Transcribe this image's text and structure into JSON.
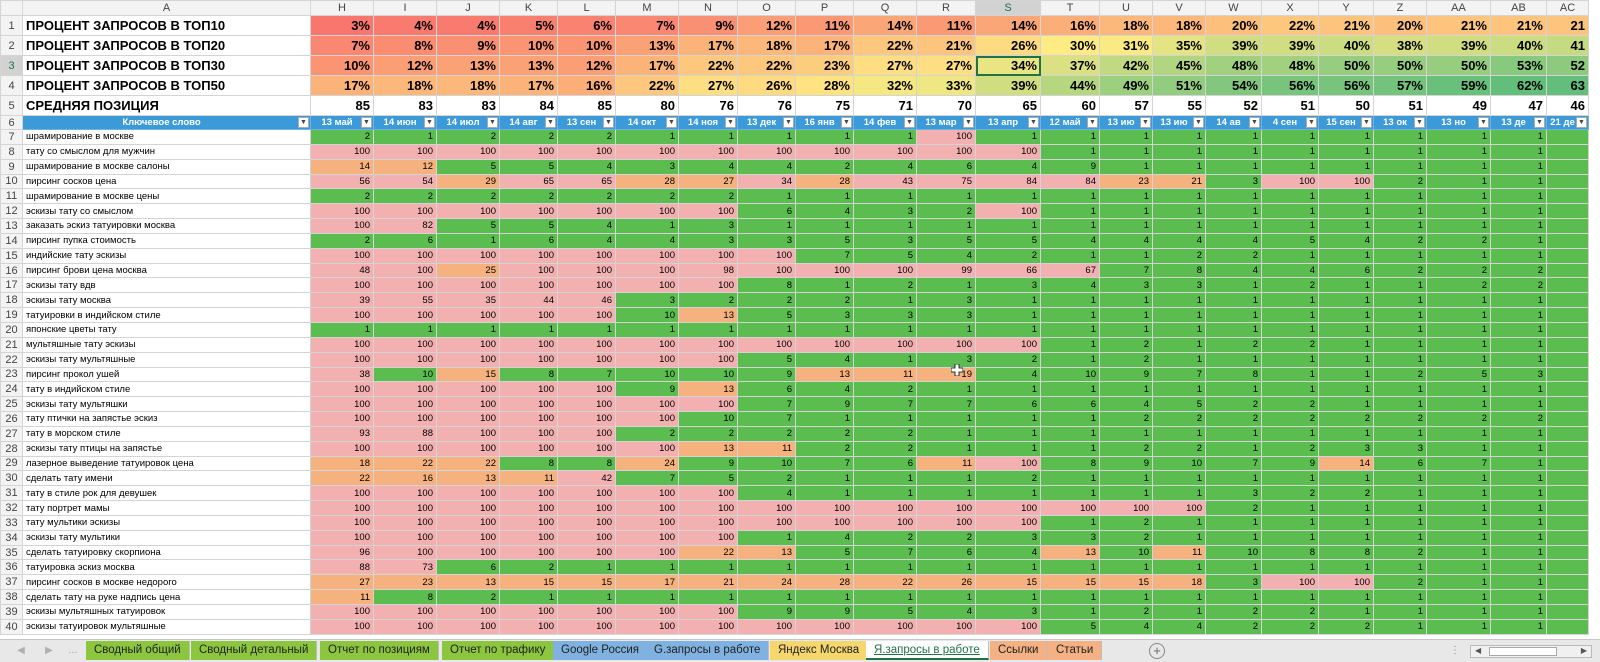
{
  "columns": [
    "A",
    "H",
    "I",
    "J",
    "K",
    "L",
    "M",
    "N",
    "O",
    "P",
    "Q",
    "R",
    "S",
    "T",
    "U",
    "V",
    "W",
    "X",
    "Y",
    "Z",
    "AA",
    "AB",
    "AC"
  ],
  "selected_column": "S",
  "selected_row": "3",
  "summary_rows": [
    {
      "row": "1",
      "label": "ПРОЦЕНТ ЗАПРОСОВ В ТОП10",
      "values": [
        "3%",
        "4%",
        "4%",
        "5%",
        "6%",
        "7%",
        "9%",
        "12%",
        "11%",
        "14%",
        "11%",
        "14%",
        "16%",
        "18%",
        "18%",
        "20%",
        "22%",
        "21%",
        "20%",
        "21%",
        "21%",
        "21"
      ]
    },
    {
      "row": "2",
      "label": "ПРОЦЕНТ ЗАПРОСОВ В ТОП20",
      "values": [
        "7%",
        "8%",
        "9%",
        "10%",
        "10%",
        "13%",
        "17%",
        "18%",
        "17%",
        "22%",
        "21%",
        "26%",
        "30%",
        "31%",
        "35%",
        "39%",
        "39%",
        "40%",
        "38%",
        "39%",
        "40%",
        "41"
      ]
    },
    {
      "row": "3",
      "label": "ПРОЦЕНТ ЗАПРОСОВ В ТОП30",
      "values": [
        "10%",
        "12%",
        "13%",
        "13%",
        "12%",
        "17%",
        "22%",
        "22%",
        "23%",
        "27%",
        "27%",
        "34%",
        "37%",
        "42%",
        "45%",
        "48%",
        "48%",
        "50%",
        "50%",
        "50%",
        "53%",
        "52"
      ]
    },
    {
      "row": "4",
      "label": "ПРОЦЕНТ ЗАПРОСОВ В ТОП50",
      "values": [
        "17%",
        "18%",
        "18%",
        "17%",
        "16%",
        "22%",
        "27%",
        "26%",
        "28%",
        "32%",
        "33%",
        "39%",
        "44%",
        "49%",
        "51%",
        "54%",
        "56%",
        "56%",
        "57%",
        "59%",
        "62%",
        "63"
      ]
    },
    {
      "row": "5",
      "label": "СРЕДНЯЯ ПОЗИЦИЯ",
      "values": [
        "85",
        "83",
        "83",
        "84",
        "85",
        "80",
        "76",
        "76",
        "75",
        "71",
        "70",
        "65",
        "60",
        "57",
        "55",
        "52",
        "51",
        "50",
        "51",
        "49",
        "47",
        "46"
      ]
    }
  ],
  "header_row": {
    "row": "6",
    "keyword_label": "Ключевое слово",
    "dates": [
      "13 май",
      "14 июн",
      "14 июл",
      "14 авг",
      "13 сен",
      "14 окт",
      "14 ноя",
      "13 дек",
      "16 янв",
      "14 фев",
      "13 мар",
      "13 апр",
      "12 май",
      "13 ию",
      "13 ию",
      "14 ав",
      "4 сен",
      "15 сен",
      "13 ок",
      "13 но",
      "13 де",
      "21 де"
    ]
  },
  "data_rows": [
    {
      "row": "7",
      "keyword": "шрамирование в москве",
      "values": [
        "2",
        "1",
        "2",
        "2",
        "2",
        "1",
        "1",
        "1",
        "1",
        "1",
        "100",
        "1",
        "1",
        "1",
        "1",
        "1",
        "1",
        "1",
        "1",
        "1",
        "1",
        ""
      ]
    },
    {
      "row": "8",
      "keyword": "тату со смыслом для мужчин",
      "values": [
        "100",
        "100",
        "100",
        "100",
        "100",
        "100",
        "100",
        "100",
        "100",
        "100",
        "100",
        "100",
        "1",
        "1",
        "1",
        "1",
        "1",
        "1",
        "1",
        "1",
        "1",
        ""
      ]
    },
    {
      "row": "9",
      "keyword": "шрамирование в москве салоны",
      "values": [
        "14",
        "12",
        "5",
        "5",
        "4",
        "3",
        "4",
        "4",
        "2",
        "4",
        "6",
        "4",
        "9",
        "1",
        "1",
        "1",
        "1",
        "1",
        "1",
        "1",
        "1",
        ""
      ]
    },
    {
      "row": "10",
      "keyword": "пирсинг сосков цена",
      "values": [
        "56",
        "54",
        "29",
        "65",
        "65",
        "28",
        "27",
        "34",
        "28",
        "43",
        "75",
        "84",
        "84",
        "23",
        "21",
        "3",
        "100",
        "100",
        "2",
        "1",
        "1",
        ""
      ]
    },
    {
      "row": "11",
      "keyword": "шрамирование в москве цены",
      "values": [
        "2",
        "2",
        "2",
        "2",
        "2",
        "2",
        "2",
        "1",
        "1",
        "1",
        "1",
        "1",
        "1",
        "1",
        "1",
        "1",
        "1",
        "1",
        "1",
        "1",
        "1",
        ""
      ]
    },
    {
      "row": "12",
      "keyword": "эскизы тату со смыслом",
      "values": [
        "100",
        "100",
        "100",
        "100",
        "100",
        "100",
        "100",
        "6",
        "4",
        "3",
        "2",
        "100",
        "1",
        "1",
        "1",
        "1",
        "1",
        "1",
        "1",
        "1",
        "1",
        ""
      ]
    },
    {
      "row": "13",
      "keyword": "заказать эскиз татуировки москва",
      "values": [
        "100",
        "82",
        "5",
        "5",
        "4",
        "1",
        "3",
        "1",
        "1",
        "1",
        "1",
        "1",
        "1",
        "1",
        "1",
        "1",
        "1",
        "1",
        "1",
        "1",
        "1",
        ""
      ]
    },
    {
      "row": "14",
      "keyword": "пирсинг пупка стоимость",
      "values": [
        "2",
        "6",
        "1",
        "6",
        "4",
        "4",
        "3",
        "3",
        "5",
        "3",
        "5",
        "5",
        "4",
        "4",
        "4",
        "4",
        "5",
        "4",
        "2",
        "2",
        "1",
        ""
      ]
    },
    {
      "row": "15",
      "keyword": "индийские тату эскизы",
      "values": [
        "100",
        "100",
        "100",
        "100",
        "100",
        "100",
        "100",
        "100",
        "7",
        "5",
        "4",
        "2",
        "1",
        "1",
        "2",
        "2",
        "1",
        "1",
        "1",
        "1",
        "1",
        ""
      ]
    },
    {
      "row": "16",
      "keyword": "пирсинг брови цена москва",
      "values": [
        "48",
        "100",
        "25",
        "100",
        "100",
        "100",
        "98",
        "100",
        "100",
        "100",
        "99",
        "66",
        "67",
        "7",
        "8",
        "4",
        "4",
        "6",
        "2",
        "2",
        "2",
        ""
      ]
    },
    {
      "row": "17",
      "keyword": "эскизы тату вдв",
      "values": [
        "100",
        "100",
        "100",
        "100",
        "100",
        "100",
        "100",
        "8",
        "1",
        "2",
        "1",
        "3",
        "4",
        "3",
        "3",
        "1",
        "2",
        "1",
        "1",
        "2",
        "2",
        ""
      ]
    },
    {
      "row": "18",
      "keyword": "эскизы тату москва",
      "values": [
        "39",
        "55",
        "35",
        "44",
        "46",
        "3",
        "2",
        "2",
        "2",
        "1",
        "3",
        "1",
        "1",
        "1",
        "1",
        "1",
        "1",
        "1",
        "1",
        "1",
        "1",
        ""
      ]
    },
    {
      "row": "19",
      "keyword": "татуировки в индийском стиле",
      "values": [
        "100",
        "100",
        "100",
        "100",
        "100",
        "10",
        "13",
        "5",
        "3",
        "3",
        "3",
        "1",
        "1",
        "1",
        "1",
        "1",
        "1",
        "1",
        "1",
        "1",
        "1",
        ""
      ]
    },
    {
      "row": "20",
      "keyword": "японские цветы тату",
      "values": [
        "1",
        "1",
        "1",
        "1",
        "1",
        "1",
        "1",
        "1",
        "1",
        "1",
        "1",
        "1",
        "1",
        "1",
        "1",
        "1",
        "1",
        "1",
        "1",
        "1",
        "1",
        ""
      ]
    },
    {
      "row": "21",
      "keyword": "мультяшные тату эскизы",
      "values": [
        "100",
        "100",
        "100",
        "100",
        "100",
        "100",
        "100",
        "100",
        "100",
        "100",
        "100",
        "100",
        "1",
        "2",
        "1",
        "2",
        "2",
        "1",
        "1",
        "1",
        "1",
        ""
      ]
    },
    {
      "row": "22",
      "keyword": "эскизы тату мультяшные",
      "values": [
        "100",
        "100",
        "100",
        "100",
        "100",
        "100",
        "100",
        "5",
        "4",
        "1",
        "3",
        "2",
        "1",
        "2",
        "1",
        "1",
        "1",
        "1",
        "1",
        "1",
        "1",
        ""
      ]
    },
    {
      "row": "23",
      "keyword": "пирсинг прокол ушей",
      "values": [
        "38",
        "10",
        "15",
        "8",
        "7",
        "10",
        "10",
        "9",
        "13",
        "11",
        "19",
        "4",
        "10",
        "9",
        "7",
        "8",
        "1",
        "1",
        "2",
        "5",
        "3",
        ""
      ]
    },
    {
      "row": "24",
      "keyword": "тату в индийском стиле",
      "values": [
        "100",
        "100",
        "100",
        "100",
        "100",
        "9",
        "13",
        "6",
        "4",
        "2",
        "1",
        "1",
        "1",
        "1",
        "1",
        "1",
        "1",
        "1",
        "1",
        "1",
        "1",
        ""
      ]
    },
    {
      "row": "25",
      "keyword": "эскизы тату мультяшки",
      "values": [
        "100",
        "100",
        "100",
        "100",
        "100",
        "100",
        "100",
        "7",
        "9",
        "7",
        "7",
        "6",
        "6",
        "4",
        "5",
        "2",
        "2",
        "1",
        "1",
        "1",
        "1",
        ""
      ]
    },
    {
      "row": "26",
      "keyword": "тату птички на запястье эскиз",
      "values": [
        "100",
        "100",
        "100",
        "100",
        "100",
        "100",
        "10",
        "7",
        "1",
        "1",
        "1",
        "1",
        "1",
        "2",
        "2",
        "2",
        "2",
        "2",
        "2",
        "2",
        "2",
        ""
      ]
    },
    {
      "row": "27",
      "keyword": "тату в морском стиле",
      "values": [
        "93",
        "88",
        "100",
        "100",
        "100",
        "2",
        "2",
        "2",
        "2",
        "2",
        "1",
        "1",
        "1",
        "1",
        "1",
        "1",
        "1",
        "1",
        "1",
        "1",
        "1",
        ""
      ]
    },
    {
      "row": "28",
      "keyword": "эскизы тату птицы на запястье",
      "values": [
        "100",
        "100",
        "100",
        "100",
        "100",
        "100",
        "13",
        "11",
        "2",
        "2",
        "1",
        "1",
        "1",
        "2",
        "2",
        "1",
        "2",
        "3",
        "3",
        "1",
        "1",
        ""
      ]
    },
    {
      "row": "29",
      "keyword": "лазерное выведение татуировок цена",
      "values": [
        "18",
        "22",
        "22",
        "8",
        "8",
        "24",
        "9",
        "10",
        "7",
        "6",
        "11",
        "100",
        "8",
        "9",
        "10",
        "7",
        "9",
        "14",
        "6",
        "7",
        "1",
        ""
      ]
    },
    {
      "row": "30",
      "keyword": "сделать тату имени",
      "values": [
        "22",
        "16",
        "13",
        "11",
        "42",
        "7",
        "5",
        "2",
        "1",
        "1",
        "1",
        "2",
        "1",
        "1",
        "1",
        "1",
        "1",
        "1",
        "1",
        "1",
        "1",
        ""
      ]
    },
    {
      "row": "31",
      "keyword": "тату в стиле рок для девушек",
      "values": [
        "100",
        "100",
        "100",
        "100",
        "100",
        "100",
        "100",
        "4",
        "1",
        "1",
        "1",
        "1",
        "1",
        "1",
        "1",
        "3",
        "2",
        "2",
        "1",
        "1",
        "1",
        ""
      ]
    },
    {
      "row": "32",
      "keyword": "тату портрет мамы",
      "values": [
        "100",
        "100",
        "100",
        "100",
        "100",
        "100",
        "100",
        "100",
        "100",
        "100",
        "100",
        "100",
        "100",
        "100",
        "100",
        "2",
        "1",
        "1",
        "1",
        "1",
        "1",
        ""
      ]
    },
    {
      "row": "33",
      "keyword": "тату мультики эскизы",
      "values": [
        "100",
        "100",
        "100",
        "100",
        "100",
        "100",
        "100",
        "100",
        "100",
        "100",
        "100",
        "100",
        "1",
        "2",
        "1",
        "1",
        "1",
        "1",
        "1",
        "1",
        "1",
        ""
      ]
    },
    {
      "row": "34",
      "keyword": "эскизы тату мультики",
      "values": [
        "100",
        "100",
        "100",
        "100",
        "100",
        "100",
        "100",
        "1",
        "4",
        "2",
        "2",
        "3",
        "3",
        "2",
        "1",
        "1",
        "1",
        "1",
        "1",
        "1",
        "1",
        ""
      ]
    },
    {
      "row": "35",
      "keyword": "сделать татуировку скорпиона",
      "values": [
        "96",
        "100",
        "100",
        "100",
        "100",
        "100",
        "22",
        "13",
        "5",
        "7",
        "6",
        "4",
        "13",
        "10",
        "11",
        "10",
        "8",
        "8",
        "2",
        "1",
        "1",
        ""
      ]
    },
    {
      "row": "36",
      "keyword": "татуировка эскиз москва",
      "values": [
        "88",
        "73",
        "6",
        "2",
        "1",
        "1",
        "1",
        "1",
        "1",
        "1",
        "1",
        "1",
        "1",
        "1",
        "1",
        "1",
        "1",
        "1",
        "1",
        "1",
        "1",
        ""
      ]
    },
    {
      "row": "37",
      "keyword": "пирсинг сосков в москве недорого",
      "values": [
        "27",
        "23",
        "13",
        "15",
        "15",
        "17",
        "21",
        "24",
        "28",
        "22",
        "26",
        "15",
        "15",
        "15",
        "18",
        "3",
        "100",
        "100",
        "2",
        "1",
        "1",
        ""
      ]
    },
    {
      "row": "38",
      "keyword": "сделать тату на руке надпись цена",
      "values": [
        "11",
        "8",
        "2",
        "1",
        "1",
        "1",
        "1",
        "1",
        "1",
        "1",
        "1",
        "1",
        "1",
        "1",
        "1",
        "1",
        "1",
        "1",
        "1",
        "1",
        "1",
        ""
      ]
    },
    {
      "row": "39",
      "keyword": "эскизы мультяшных татуировок",
      "values": [
        "100",
        "100",
        "100",
        "100",
        "100",
        "100",
        "100",
        "9",
        "9",
        "5",
        "4",
        "3",
        "1",
        "2",
        "1",
        "2",
        "2",
        "1",
        "1",
        "1",
        "1",
        ""
      ]
    },
    {
      "row": "40",
      "keyword": "эскизы татуировок мультяшные",
      "values": [
        "100",
        "100",
        "100",
        "100",
        "100",
        "100",
        "100",
        "100",
        "100",
        "100",
        "100",
        "100",
        "5",
        "4",
        "4",
        "2",
        "2",
        "2",
        "1",
        "1",
        "1",
        ""
      ]
    }
  ],
  "sheet_tabs": [
    {
      "label": "Сводный общий",
      "color": "#8cc63f",
      "active": false
    },
    {
      "label": "Сводный детальный",
      "color": "#8cc63f",
      "active": false
    },
    {
      "label": "Отчет по позициям",
      "color": "#8cc63f",
      "active": false
    },
    {
      "label": "Отчет по трафику",
      "color": "#8cc63f",
      "active": false
    },
    {
      "label": "Google Россия",
      "color": "#7fb2e0",
      "active": false
    },
    {
      "label": "G.запросы в работе",
      "color": "#7fb2e0",
      "active": false
    },
    {
      "label": "Яндекс Москва",
      "color": "#f5d76e",
      "active": false
    },
    {
      "label": "Я.запросы в работе",
      "color": "#f5d76e",
      "active": true
    },
    {
      "label": "Ссылки",
      "color": "#f4b183",
      "active": false
    },
    {
      "label": "Статьи",
      "color": "#f4b183",
      "active": false
    }
  ],
  "colors": {
    "header_blue": "#3d9ad9",
    "cell_green": "#5bbd4f",
    "cell_pink": "#f3b0b0",
    "cell_orange": "#f5b27e",
    "selection_green": "#217346"
  },
  "icons": {
    "add_sheet": "plus-circle-icon",
    "nav_prev": "triangle-left-icon",
    "nav_next": "triangle-right-icon",
    "filter": "dropdown-arrow-icon",
    "cursor": "move-cursor-icon"
  }
}
